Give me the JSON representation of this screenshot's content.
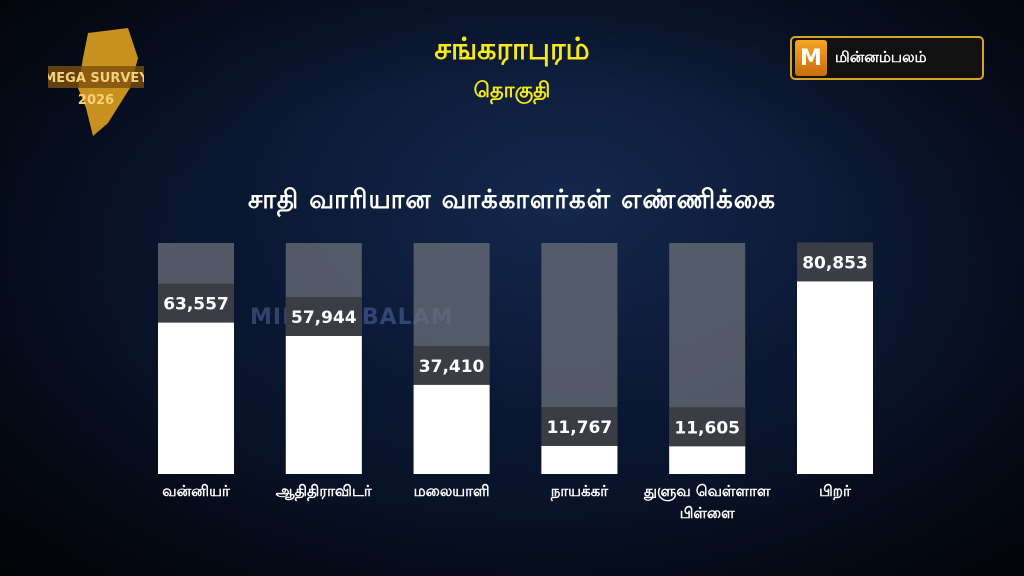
{
  "header": {
    "title": "சங்கராபுரம்",
    "subtitle": "தொகுதி"
  },
  "badge": {
    "text_top": "MEGA SURVEY",
    "text_year": "2026"
  },
  "logo": {
    "text": "மின்னம்பலம்"
  },
  "watermark": "MINNAMBALAM",
  "colors": {
    "title": "#f7e81a",
    "bar_fill": "#ffffff",
    "bar_track": "#6b6f78",
    "label_box": "#3a3d44",
    "logo_border": "#d9a521"
  },
  "chart_data": {
    "type": "bar",
    "title": "சாதி வாரியான வாக்காளர்கள்  எண்ணிக்கை",
    "categories": [
      "வன்னியர்",
      "ஆதிதிராவிடர்",
      "மலையாளி",
      "நாயக்கர்",
      "துளுவ வெள்ளாள பிள்ளை",
      "பிறர்"
    ],
    "values": [
      63557,
      57944,
      37410,
      11767,
      11605,
      80853
    ],
    "value_labels": [
      "63,557",
      "57,944",
      "37,410",
      "11,767",
      "11,605",
      "80,853"
    ],
    "grid": false,
    "legend": "none"
  }
}
